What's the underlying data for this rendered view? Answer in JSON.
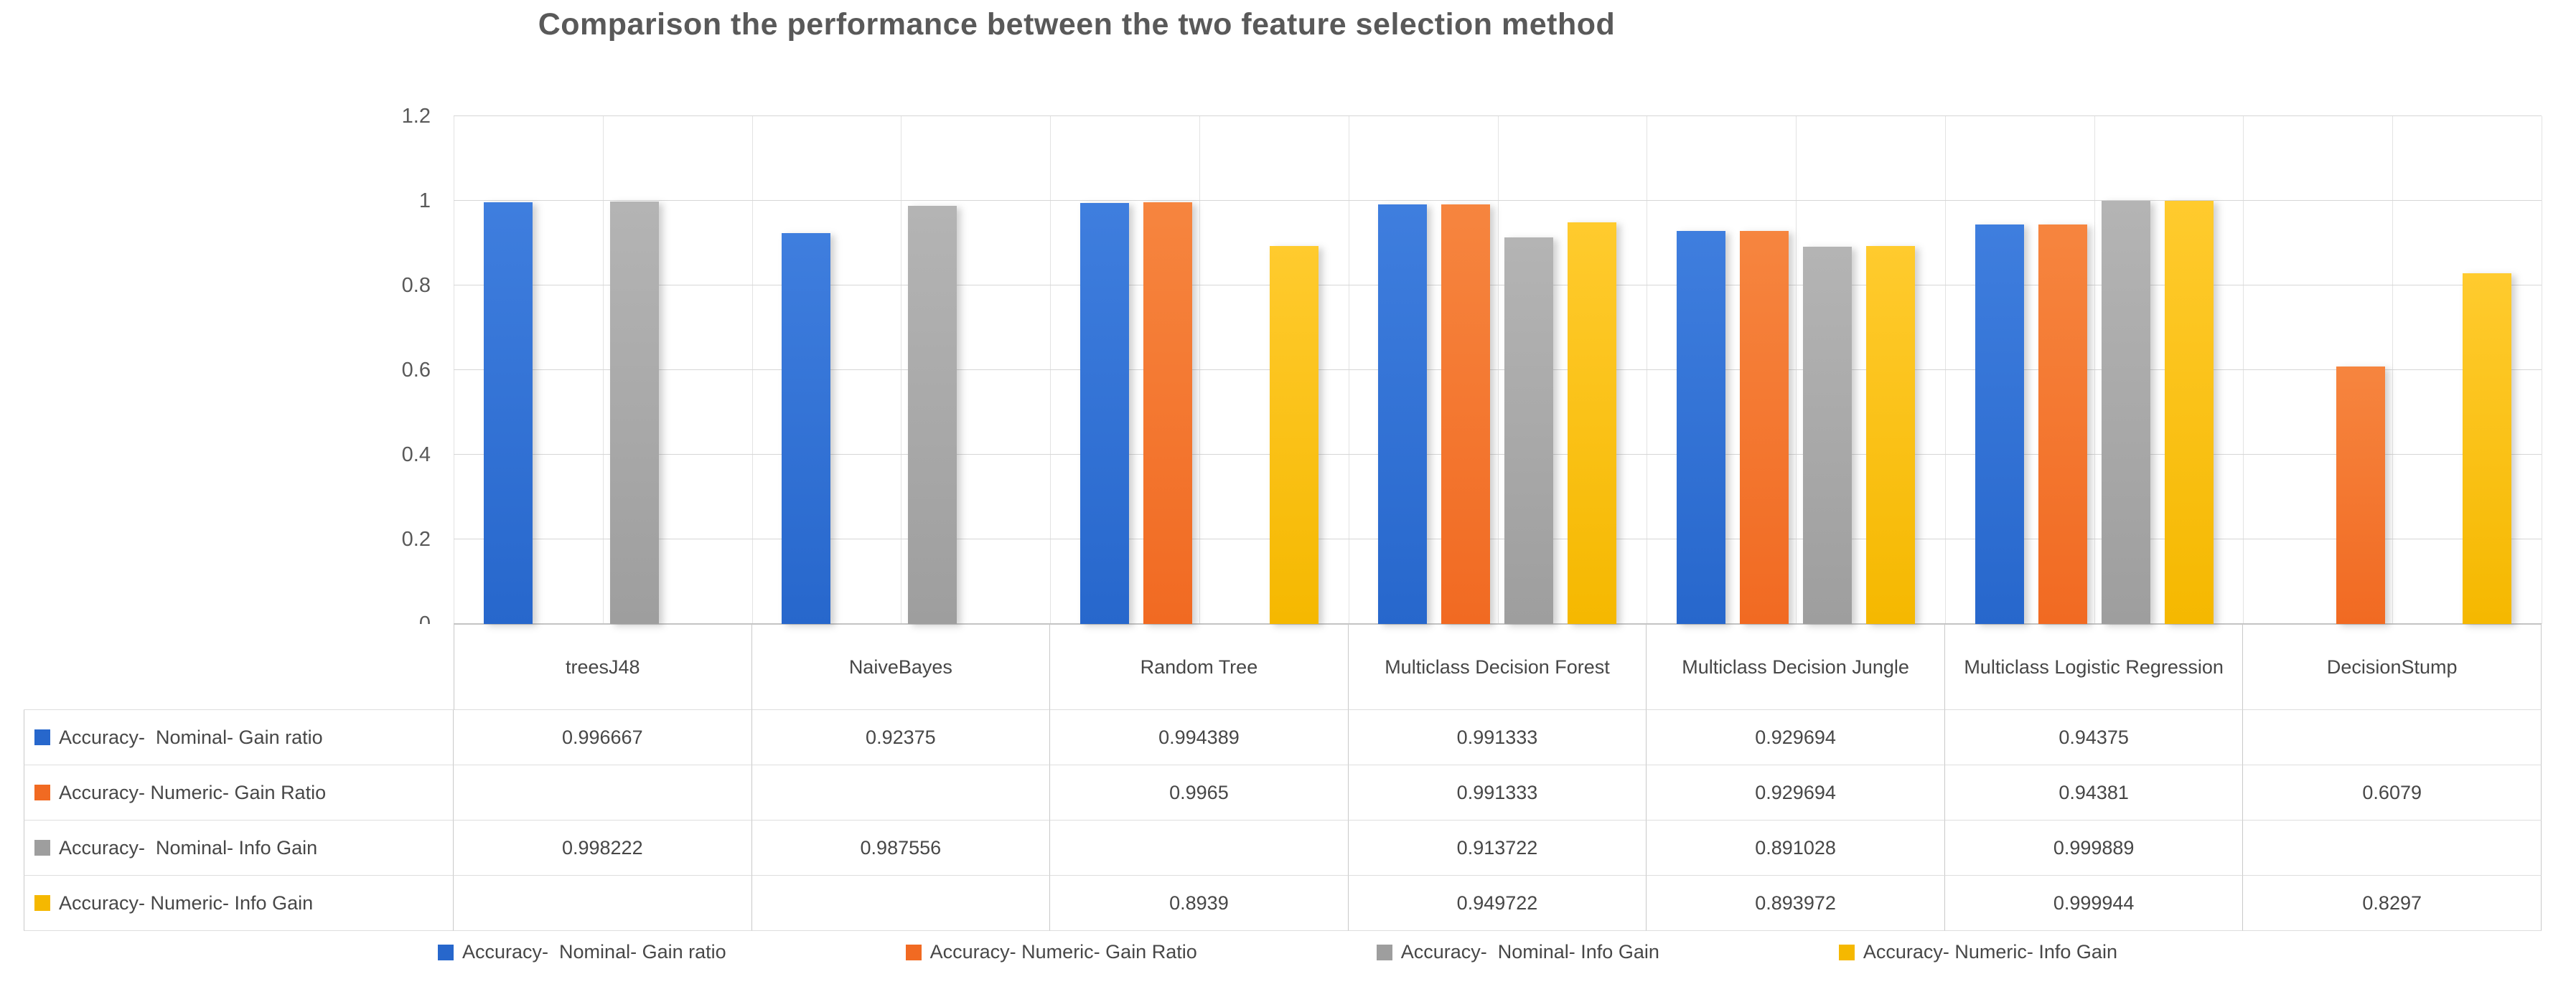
{
  "chart_data": {
    "type": "bar",
    "title": "Comparison the performance between the two feature selection method",
    "title_color": "#595959",
    "categories": [
      "treesJ48",
      "NaiveBayes",
      "Random Tree",
      "Multiclass Decision Forest",
      "Multiclass Decision Jungle",
      "Multiclass Logistic Regression",
      "DecisionStump"
    ],
    "series": [
      {
        "key": "accuracy-nominal-gain-ratio",
        "name": "Accuracy-  Nominal- Gain ratio",
        "color": "#2767CC",
        "color_light": "#3F7EDE",
        "values": [
          0.996667,
          0.92375,
          0.994389,
          0.991333,
          0.929694,
          0.94375,
          null
        ]
      },
      {
        "key": "accuracy-numeric-gain-ratio",
        "name": "Accuracy- Numeric- Gain Ratio",
        "color": "#F16A22",
        "color_light": "#F6853F",
        "values": [
          null,
          null,
          0.9965,
          0.991333,
          0.929694,
          0.94381,
          0.6079
        ]
      },
      {
        "key": "accuracy-nominal-info-gain",
        "name": "Accuracy-  Nominal- Info Gain",
        "color": "#9E9E9E",
        "color_light": "#B4B4B4",
        "values": [
          0.998222,
          0.987556,
          null,
          0.913722,
          0.891028,
          0.999889,
          null
        ]
      },
      {
        "key": "accuracy-numeric-info-gain",
        "name": "Accuracy- Numeric- Info Gain",
        "color": "#F5B800",
        "color_light": "#FFCB2E",
        "values": [
          null,
          null,
          0.8939,
          0.949722,
          0.893972,
          0.999944,
          0.8297
        ]
      }
    ],
    "ylim": [
      0,
      1.2
    ],
    "ytick_values": [
      0,
      0.2,
      0.4,
      0.6,
      0.8,
      1,
      1.2
    ],
    "ytick_labels": [
      "0",
      "0.2",
      "0.4",
      "0.6",
      "0.8",
      "1",
      "1.2"
    ],
    "grid": true,
    "legend_position": "bottom",
    "gridline_color": "#d6d6d6",
    "axis_color": "#c0c0c0",
    "table_empty_cell": ""
  }
}
